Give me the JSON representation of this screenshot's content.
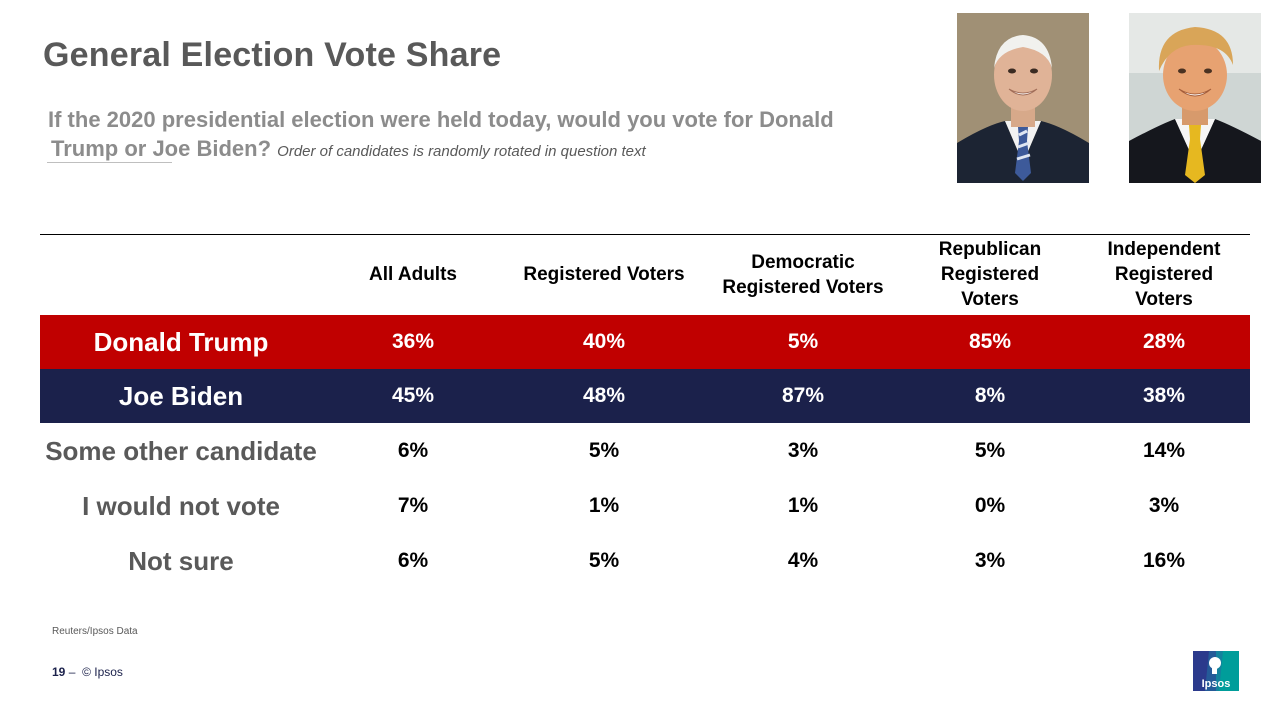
{
  "title": "General Election Vote Share",
  "subtitle": {
    "line1": "If the 2020 presidential election were held today, would you vote for Donald",
    "line2": "Trump or Joe Biden?",
    "note": "Order of candidates is randomly rotated in question text"
  },
  "columns": [
    {
      "lines": [
        "All Adults"
      ]
    },
    {
      "lines": [
        "Registered Voters"
      ]
    },
    {
      "lines": [
        "Democratic",
        "Registered Voters"
      ]
    },
    {
      "lines": [
        "Republican",
        "Registered",
        "Voters"
      ]
    },
    {
      "lines": [
        "Independent",
        "Registered",
        "Voters"
      ]
    }
  ],
  "rows": [
    {
      "label": "Donald Trump",
      "values": [
        "36%",
        "40%",
        "5%",
        "85%",
        "28%"
      ]
    },
    {
      "label": "Joe Biden",
      "values": [
        "45%",
        "48%",
        "87%",
        "8%",
        "38%"
      ]
    },
    {
      "label": "Some other candidate",
      "values": [
        "6%",
        "5%",
        "3%",
        "5%",
        "14%"
      ]
    },
    {
      "label": "I would not vote",
      "values": [
        "7%",
        "1%",
        "1%",
        "0%",
        "3%"
      ]
    },
    {
      "label": "Not sure",
      "values": [
        "6%",
        "5%",
        "4%",
        "3%",
        "16%"
      ]
    }
  ],
  "source": "Reuters/Ipsos Data",
  "footer": {
    "page": "19",
    "sep": "–",
    "copyright": "© Ipsos"
  },
  "logo_text": "Ipsos",
  "colors": {
    "trump_red": "#c00000",
    "biden_navy": "#1b214b",
    "ipsos_teal": "#009d9a",
    "ipsos_blue": "#2b3a8c"
  }
}
